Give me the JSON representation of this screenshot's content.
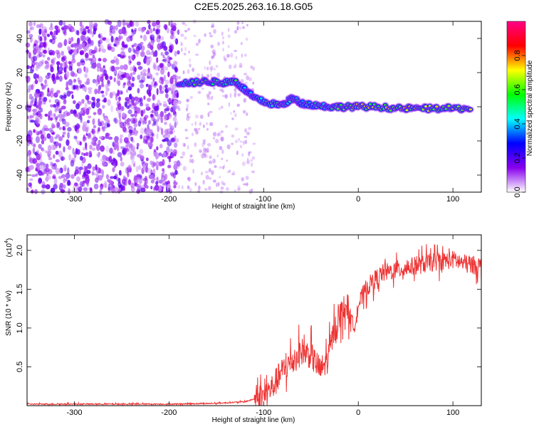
{
  "chart_data": [
    {
      "type": "heatmap",
      "title": "C2E5.2025.263.16.18.G05",
      "xlabel": "Height of straight line (km)",
      "ylabel": "Frequency (Hz)",
      "xlim": [
        -350,
        130
      ],
      "ylim": [
        -50,
        50
      ],
      "x_ticks": [
        -300,
        -200,
        -100,
        0,
        100
      ],
      "y_ticks": [
        -40,
        -20,
        0,
        20,
        40
      ],
      "grid": false,
      "colorbar": {
        "label": "Normalized spectral amplitude",
        "range": [
          0,
          1
        ],
        "ticks": [
          0.0,
          0.2,
          0.4,
          0.6,
          0.8
        ],
        "colors": [
          "#ffffff",
          "#8800ee",
          "#0000ff",
          "#00ffff",
          "#00ff00",
          "#ffff00",
          "#ff0000",
          "#ff0088"
        ]
      },
      "signal_track": [
        {
          "x": -190,
          "y": 14,
          "amp": 0.45
        },
        {
          "x": -175,
          "y": 14,
          "amp": 0.55
        },
        {
          "x": -160,
          "y": 15,
          "amp": 0.6
        },
        {
          "x": -145,
          "y": 14,
          "amp": 0.6
        },
        {
          "x": -130,
          "y": 15,
          "amp": 0.55
        },
        {
          "x": -120,
          "y": 10,
          "amp": 0.4
        },
        {
          "x": -110,
          "y": 5,
          "amp": 0.45
        },
        {
          "x": -95,
          "y": 2,
          "amp": 0.5
        },
        {
          "x": -80,
          "y": 1,
          "amp": 0.55
        },
        {
          "x": -70,
          "y": 5,
          "amp": 0.5
        },
        {
          "x": -60,
          "y": 2,
          "amp": 0.45
        },
        {
          "x": -45,
          "y": 1,
          "amp": 0.45
        },
        {
          "x": -30,
          "y": 0,
          "amp": 0.5
        },
        {
          "x": -15,
          "y": 0,
          "amp": 0.6
        },
        {
          "x": 0,
          "y": 0,
          "amp": 0.7
        },
        {
          "x": 20,
          "y": 0,
          "amp": 0.6
        },
        {
          "x": 40,
          "y": -1,
          "amp": 0.7
        },
        {
          "x": 60,
          "y": -1,
          "amp": 0.65
        },
        {
          "x": 80,
          "y": -1,
          "amp": 0.7
        },
        {
          "x": 100,
          "y": -1,
          "amp": 0.65
        },
        {
          "x": 120,
          "y": -1,
          "amp": 0.7
        }
      ]
    },
    {
      "type": "line",
      "xlabel": "Height of straight line (km)",
      "ylabel": "SNR (10 * v/v)",
      "y_scale_label": "(x10",
      "y_scale_exp": "4",
      "xlim": [
        -350,
        130
      ],
      "ylim": [
        0,
        2.2
      ],
      "x_ticks": [
        -300,
        -200,
        -100,
        0,
        100
      ],
      "y_ticks": [
        0.5,
        1.0,
        1.5,
        2.0
      ],
      "grid": false,
      "color": "#ee3333",
      "series": [
        {
          "x": [
            -350,
            -200,
            -150,
            -120,
            -100,
            -90,
            -80,
            -72,
            -60,
            -50,
            -40,
            -32,
            -25,
            -18,
            -12,
            -5,
            0,
            8,
            15,
            25,
            40,
            60,
            80,
            100,
            115,
            130
          ],
          "y": [
            0.02,
            0.02,
            0.03,
            0.05,
            0.12,
            0.25,
            0.45,
            0.55,
            0.7,
            0.65,
            0.45,
            0.6,
            1.0,
            1.2,
            1.3,
            1.0,
            1.3,
            1.5,
            1.6,
            1.7,
            1.75,
            1.8,
            1.85,
            1.88,
            1.82,
            1.8
          ]
        }
      ]
    }
  ]
}
